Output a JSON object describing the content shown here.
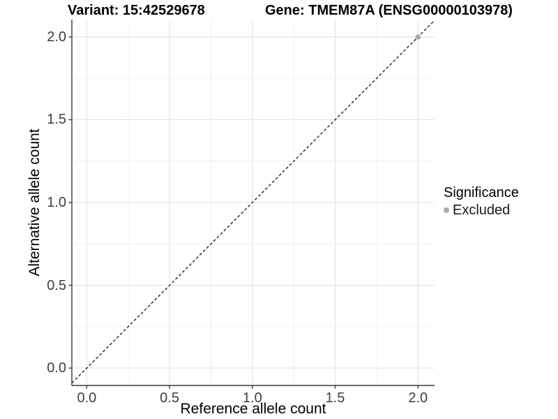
{
  "titles": {
    "variant": "Variant: 15:42529678",
    "gene": "Gene: TMEM87A (ENSG00000103978)"
  },
  "axes": {
    "x": {
      "label": "Reference allele count"
    },
    "y": {
      "label": "Alternative allele count"
    }
  },
  "legend": {
    "title": "Significance",
    "items": [
      {
        "label": "Excluded",
        "color": "#a9a9a9"
      }
    ]
  },
  "colors": {
    "background": "#ffffff",
    "grid_major": "#e2e2e2",
    "grid_minor": "#f0f0f0",
    "axis_line": "#3a3a3a",
    "tick_mark": "#3a3a3a",
    "tick_text": "#3d3d3d",
    "identity_line": "#000000",
    "point": "#a9a9a9"
  },
  "chart_data": {
    "type": "scatter",
    "title": "Variant: 15:42529678   Gene: TMEM87A (ENSG00000103978)",
    "xlabel": "Reference allele count",
    "ylabel": "Alternative allele count",
    "xlim": [
      -0.09,
      2.1
    ],
    "ylim": [
      -0.105,
      2.105
    ],
    "x_ticks": {
      "values": [
        0,
        0.5,
        1,
        1.5,
        2
      ],
      "labels": [
        "0.0",
        "0.5",
        "1.0",
        "1.5",
        "2.0"
      ]
    },
    "y_ticks": {
      "values": [
        0,
        0.5,
        1,
        1.5,
        2
      ],
      "labels": [
        "0.0",
        "0.5",
        "1.0",
        "1.5",
        "2.0"
      ]
    },
    "grid": {
      "major_shown": true,
      "minor_shown": true,
      "minor_positions": [
        0.25,
        0.75,
        1.25,
        1.75
      ]
    },
    "series": [
      {
        "name": "Excluded",
        "color": "#a9a9a9",
        "points": [
          {
            "x": 2.0,
            "y": 2.0
          }
        ]
      }
    ],
    "identity_line": {
      "style": "dashed",
      "color": "#000000",
      "from": -0.09,
      "to": 2.1
    },
    "legend_title": "Significance",
    "legend_position": "right"
  }
}
